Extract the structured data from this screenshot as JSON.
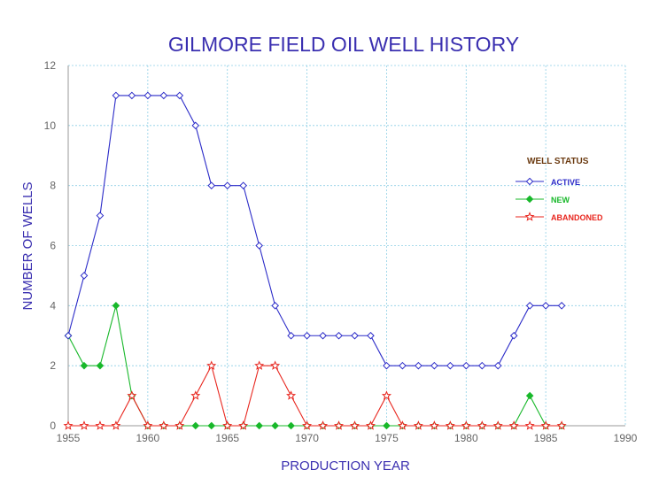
{
  "chart_data": {
    "type": "line",
    "title": "GILMORE FIELD OIL WELL HISTORY",
    "xlabel": "PRODUCTION YEAR",
    "ylabel": "NUMBER OF WELLS",
    "xlim": [
      1955,
      1990
    ],
    "ylim": [
      0,
      12
    ],
    "xticks": [
      1955,
      1960,
      1965,
      1970,
      1975,
      1980,
      1985,
      1990
    ],
    "yticks": [
      0,
      2,
      4,
      6,
      8,
      10,
      12
    ],
    "grid": true,
    "legend": {
      "title": "WELL STATUS",
      "position": "right"
    },
    "x": [
      1955,
      1956,
      1957,
      1958,
      1959,
      1960,
      1961,
      1962,
      1963,
      1964,
      1965,
      1966,
      1967,
      1968,
      1969,
      1970,
      1971,
      1972,
      1973,
      1974,
      1975,
      1976,
      1977,
      1978,
      1979,
      1980,
      1981,
      1982,
      1983,
      1984,
      1985,
      1986
    ],
    "series": [
      {
        "name": "ACTIVE",
        "color": "#2b2bc8",
        "marker": "diamond-open",
        "values": [
          3,
          5,
          7,
          11,
          11,
          11,
          11,
          11,
          10,
          8,
          8,
          8,
          6,
          4,
          3,
          3,
          3,
          3,
          3,
          3,
          2,
          2,
          2,
          2,
          2,
          2,
          2,
          2,
          3,
          4,
          4,
          4
        ]
      },
      {
        "name": "NEW",
        "color": "#18b82a",
        "marker": "diamond-filled",
        "values": [
          3,
          2,
          2,
          4,
          1,
          0,
          0,
          0,
          0,
          0,
          0,
          0,
          0,
          0,
          0,
          0,
          0,
          0,
          0,
          0,
          0,
          0,
          0,
          0,
          0,
          0,
          0,
          0,
          0,
          1,
          0,
          0
        ]
      },
      {
        "name": "ABANDONED",
        "color": "#e8261e",
        "marker": "star-open",
        "values": [
          0,
          0,
          0,
          0,
          1,
          0,
          0,
          0,
          1,
          2,
          0,
          0,
          2,
          2,
          1,
          0,
          0,
          0,
          0,
          0,
          1,
          0,
          0,
          0,
          0,
          0,
          0,
          0,
          0,
          0,
          0,
          0
        ]
      }
    ]
  }
}
